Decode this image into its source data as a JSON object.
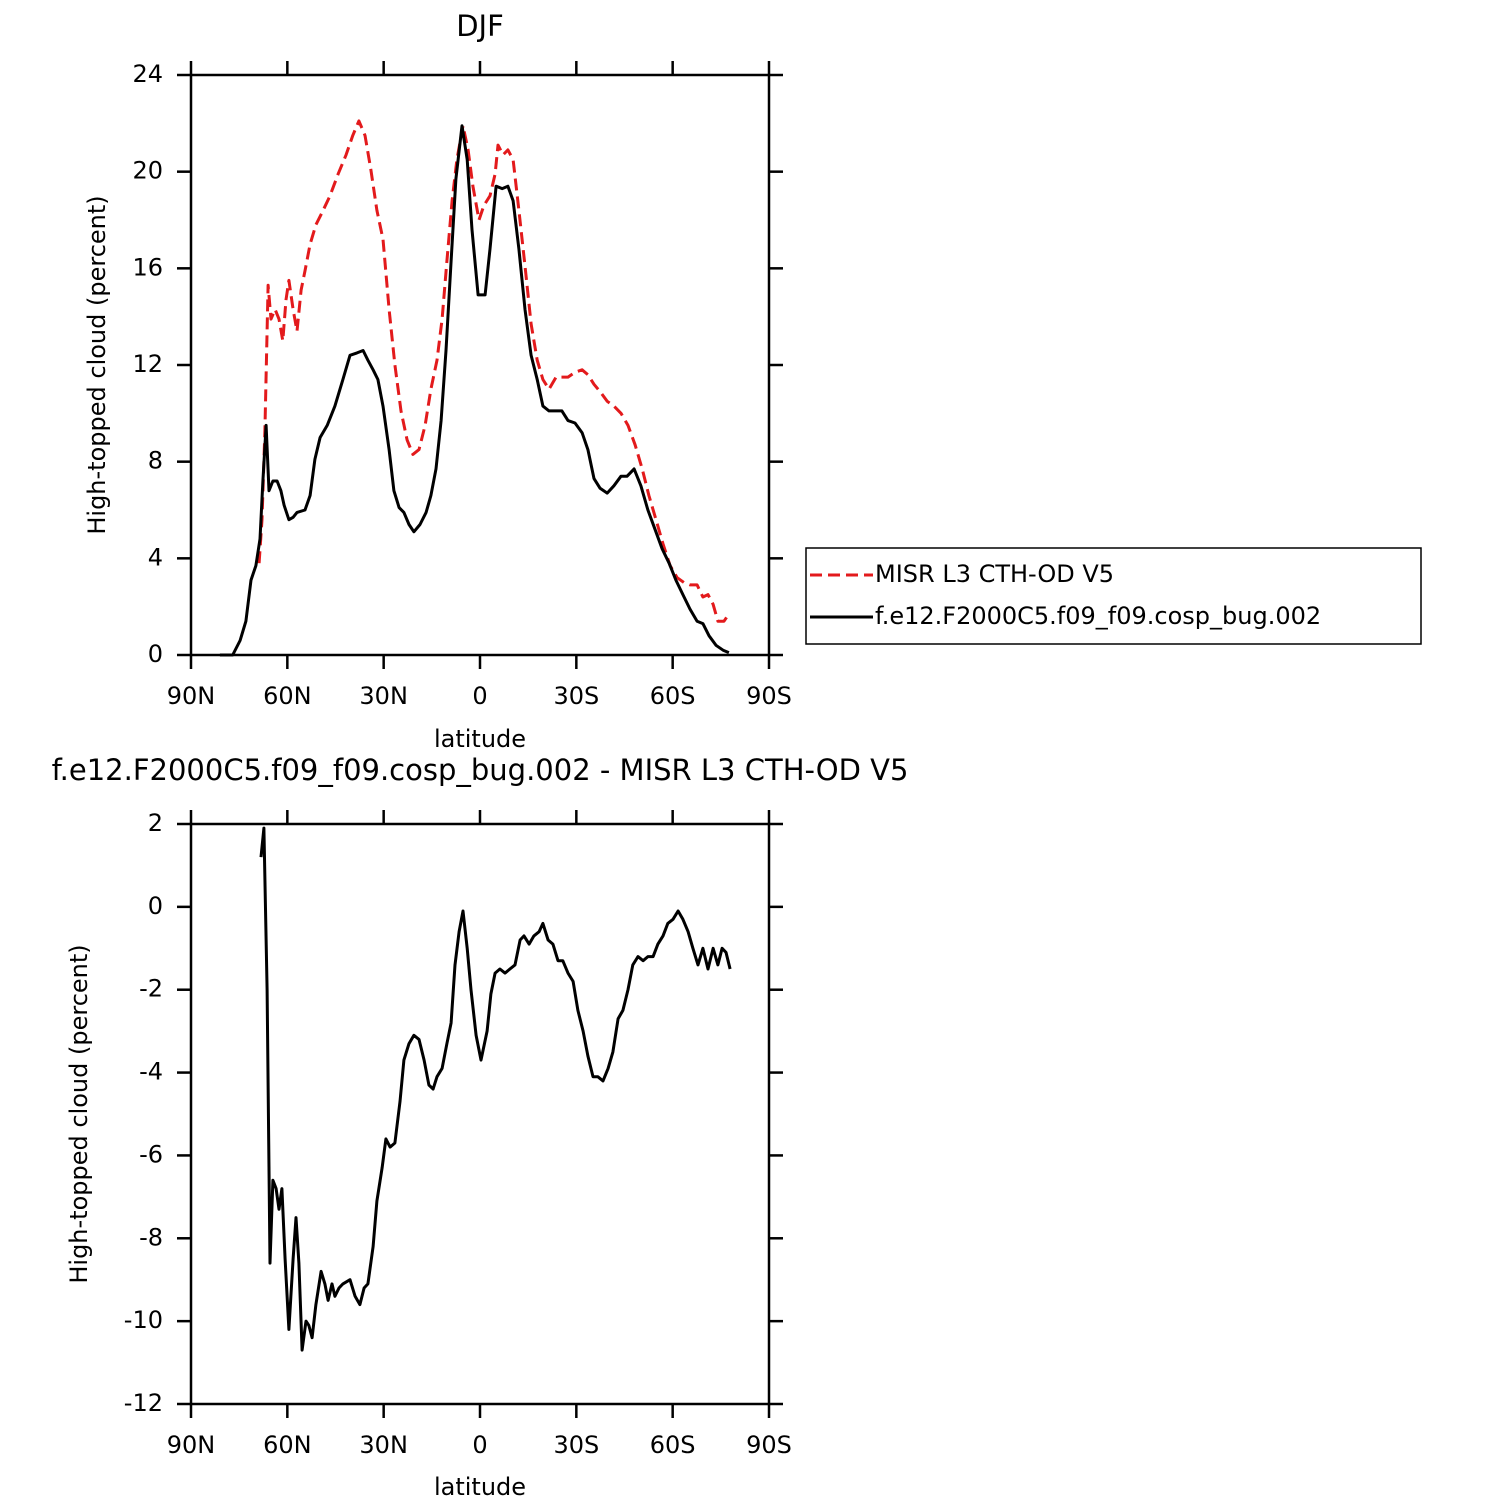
{
  "chart_data": [
    {
      "type": "line",
      "title": "DJF",
      "xlabel": "latitude",
      "ylabel": "High-topped cloud (percent)",
      "xlim": [
        90,
        -90
      ],
      "xticks": [
        {
          "value": 90,
          "label": "90N"
        },
        {
          "value": 60,
          "label": "60N"
        },
        {
          "value": 30,
          "label": "30N"
        },
        0,
        {
          "value": -30,
          "label": "30S"
        },
        {
          "value": -60,
          "label": "60S"
        },
        {
          "value": -90,
          "label": "90S"
        }
      ],
      "ylim": [
        0,
        24
      ],
      "yticks": [
        0,
        4,
        8,
        12,
        16,
        20,
        24
      ],
      "legend": "right",
      "series": [
        {
          "name": "MISR L3 CTH-OD V5",
          "color": "#e31a1c",
          "dashed": true,
          "x": [
            68.8,
            67.9,
            67.0,
            66.0,
            65.1,
            63.8,
            62.6,
            61.4,
            60.4,
            59.5,
            58.2,
            57.0,
            55.7,
            54.5,
            52.9,
            51.1,
            49.2,
            46.7,
            44.2,
            41.7,
            39.6,
            37.7,
            35.8,
            34.0,
            32.1,
            30.2,
            28.3,
            26.5,
            24.6,
            22.7,
            20.9,
            19.0,
            17.1,
            15.3,
            13.4,
            11.8,
            10.3,
            8.7,
            7.2,
            5.3,
            3.7,
            2.2,
            0.3,
            -1.2,
            -3.1,
            -4.7,
            -5.6,
            -7.2,
            -8.7,
            -10.3,
            -12.1,
            -14.0,
            -15.9,
            -17.8,
            -19.6,
            -21.5,
            -23.7,
            -25.5,
            -27.4,
            -29.6,
            -31.8,
            -33.6,
            -35.5,
            -37.4,
            -39.6,
            -41.7,
            -43.9,
            -46.1,
            -48.3,
            -50.5,
            -52.6,
            -54.8,
            -57.0,
            -59.2,
            -61.4,
            -63.5,
            -65.4,
            -67.6,
            -69.4,
            -71.0,
            -72.6,
            -74.1,
            -76.0,
            -77.5
          ],
          "values": [
            3.8,
            5.6,
            9.3,
            15.3,
            13.9,
            14.3,
            13.9,
            13.0,
            14.7,
            15.5,
            14.3,
            13.4,
            15.1,
            15.9,
            17.0,
            17.8,
            18.3,
            19.0,
            19.9,
            20.7,
            21.5,
            22.1,
            21.5,
            20.1,
            18.4,
            17.2,
            14.3,
            12.0,
            10.1,
            8.9,
            8.3,
            8.5,
            9.5,
            11.0,
            12.2,
            13.9,
            16.3,
            18.8,
            20.5,
            21.9,
            20.9,
            19.4,
            18.0,
            18.6,
            19.0,
            19.9,
            21.1,
            20.7,
            20.9,
            20.5,
            18.4,
            16.1,
            13.7,
            12.2,
            11.4,
            11.0,
            11.5,
            11.5,
            11.5,
            11.7,
            11.8,
            11.6,
            11.2,
            10.9,
            10.5,
            10.3,
            10.0,
            9.5,
            8.7,
            7.7,
            6.6,
            5.6,
            4.6,
            3.7,
            3.2,
            3.0,
            2.9,
            2.9,
            2.4,
            2.5,
            2.1,
            1.4,
            1.4,
            1.7
          ]
        },
        {
          "name": "f.e12.F2000C5.f09_f09.cosp_bug.002",
          "color": "#000000",
          "dashed": false,
          "x": [
            81,
            77,
            74.7,
            72.9,
            71.3,
            69.8,
            68.5,
            67.6,
            66.6,
            65.7,
            64.5,
            63.2,
            62.0,
            61.0,
            59.5,
            58.2,
            57.0,
            54.5,
            52.9,
            51.4,
            49.8,
            47.6,
            45.2,
            42.7,
            40.5,
            38.3,
            36.4,
            34.9,
            33.3,
            31.8,
            30.2,
            28.3,
            26.8,
            25.2,
            23.7,
            22.1,
            20.6,
            18.7,
            16.8,
            15.3,
            13.7,
            12.1,
            10.6,
            9.0,
            7.5,
            5.6,
            4.0,
            2.5,
            0.6,
            -1.6,
            -3.1,
            -5.0,
            -6.9,
            -8.7,
            -10.3,
            -12.1,
            -14.0,
            -15.9,
            -17.8,
            -19.6,
            -21.5,
            -23.7,
            -25.5,
            -27.4,
            -29.6,
            -31.8,
            -33.6,
            -35.5,
            -37.4,
            -39.6,
            -41.7,
            -43.9,
            -45.8,
            -48.0,
            -50.1,
            -52.3,
            -54.5,
            -56.7,
            -58.9,
            -61.0,
            -63.2,
            -65.4,
            -67.6,
            -69.4,
            -71.3,
            -73.5,
            -75.7,
            -77.5
          ],
          "values": [
            0,
            0,
            0.6,
            1.4,
            3.1,
            3.7,
            4.8,
            7.2,
            9.5,
            6.8,
            7.2,
            7.2,
            6.8,
            6.2,
            5.6,
            5.7,
            5.9,
            6.0,
            6.6,
            8.1,
            9.0,
            9.5,
            10.3,
            11.4,
            12.4,
            12.5,
            12.6,
            12.2,
            11.8,
            11.4,
            10.3,
            8.5,
            6.8,
            6.1,
            5.9,
            5.4,
            5.1,
            5.4,
            5.9,
            6.6,
            7.7,
            9.7,
            12.6,
            16.3,
            19.7,
            21.9,
            20.5,
            17.6,
            14.9,
            14.9,
            16.8,
            19.4,
            19.3,
            19.4,
            18.8,
            16.8,
            14.3,
            12.4,
            11.4,
            10.3,
            10.1,
            10.1,
            10.1,
            9.7,
            9.6,
            9.2,
            8.5,
            7.3,
            6.9,
            6.7,
            7.0,
            7.4,
            7.4,
            7.7,
            7.0,
            6.0,
            5.2,
            4.4,
            3.8,
            3.1,
            2.5,
            1.9,
            1.4,
            1.3,
            0.8,
            0.4,
            0.2,
            0.1
          ]
        }
      ]
    },
    {
      "type": "line",
      "title": "f.e12.F2000C5.f09_f09.cosp_bug.002 - MISR L3 CTH-OD V5",
      "xlabel": "latitude",
      "ylabel": "High-topped cloud (percent)",
      "xlim": [
        90,
        -90
      ],
      "xticks": [
        {
          "value": 90,
          "label": "90N"
        },
        {
          "value": 60,
          "label": "60N"
        },
        {
          "value": 30,
          "label": "30N"
        },
        0,
        {
          "value": -30,
          "label": "30S"
        },
        {
          "value": -60,
          "label": "60S"
        },
        {
          "value": -90,
          "label": "90S"
        }
      ],
      "ylim": [
        -12,
        2
      ],
      "yticks": [
        -12,
        -10,
        -8,
        -6,
        -4,
        -2,
        0,
        2
      ],
      "color": "#000000",
      "x": [
        68.2,
        67.3,
        66.3,
        65.4,
        64.5,
        63.5,
        62.6,
        61.7,
        60.7,
        59.5,
        58.2,
        57.3,
        56.4,
        55.4,
        54.2,
        53.3,
        52.3,
        51.1,
        49.5,
        48.3,
        47.3,
        46.1,
        45.2,
        43.9,
        42.7,
        40.5,
        38.9,
        37.4,
        36.1,
        34.9,
        33.3,
        32.1,
        30.5,
        29.3,
        28.0,
        26.5,
        24.9,
        23.7,
        22.1,
        20.6,
        19.0,
        17.4,
        15.9,
        14.6,
        13.4,
        11.8,
        10.3,
        9.0,
        7.8,
        6.5,
        5.3,
        4.0,
        2.8,
        1.2,
        -0.3,
        -2.2,
        -3.4,
        -4.7,
        -6.2,
        -7.8,
        -9.3,
        -10.9,
        -12.5,
        -13.7,
        -15.3,
        -16.8,
        -18.4,
        -19.6,
        -21.2,
        -22.7,
        -24.3,
        -25.8,
        -27.4,
        -29.0,
        -30.5,
        -32.1,
        -33.6,
        -35.2,
        -36.7,
        -38.3,
        -39.9,
        -41.4,
        -43.0,
        -44.5,
        -46.1,
        -47.6,
        -49.2,
        -50.8,
        -52.3,
        -53.9,
        -55.4,
        -57.0,
        -58.5,
        -60.1,
        -61.7,
        -63.2,
        -64.8,
        -66.3,
        -67.9,
        -69.4,
        -71.0,
        -72.6,
        -74.1,
        -75.4,
        -76.6,
        -77.9
      ],
      "values": [
        1.2,
        1.9,
        -2.0,
        -8.6,
        -6.6,
        -6.8,
        -7.3,
        -6.8,
        -8.5,
        -10.2,
        -8.5,
        -7.5,
        -8.6,
        -10.7,
        -10.0,
        -10.1,
        -10.4,
        -9.6,
        -8.8,
        -9.1,
        -9.5,
        -9.1,
        -9.4,
        -9.2,
        -9.1,
        -9.0,
        -9.4,
        -9.6,
        -9.2,
        -9.1,
        -8.2,
        -7.1,
        -6.3,
        -5.6,
        -5.8,
        -5.7,
        -4.7,
        -3.7,
        -3.3,
        -3.1,
        -3.2,
        -3.7,
        -4.3,
        -4.4,
        -4.1,
        -3.9,
        -3.3,
        -2.8,
        -1.4,
        -0.6,
        -0.1,
        -1.0,
        -2.0,
        -3.1,
        -3.7,
        -3.0,
        -2.1,
        -1.6,
        -1.5,
        -1.6,
        -1.5,
        -1.4,
        -0.8,
        -0.7,
        -0.9,
        -0.7,
        -0.6,
        -0.4,
        -0.8,
        -0.9,
        -1.3,
        -1.3,
        -1.6,
        -1.8,
        -2.5,
        -3.0,
        -3.6,
        -4.1,
        -4.1,
        -4.2,
        -3.9,
        -3.5,
        -2.7,
        -2.5,
        -2.0,
        -1.4,
        -1.2,
        -1.3,
        -1.2,
        -1.2,
        -0.9,
        -0.7,
        -0.4,
        -0.3,
        -0.1,
        -0.3,
        -0.6,
        -1.0,
        -1.4,
        -1.0,
        -1.5,
        -1.0,
        -1.4,
        -1.0,
        -1.1,
        -1.5
      ]
    }
  ]
}
